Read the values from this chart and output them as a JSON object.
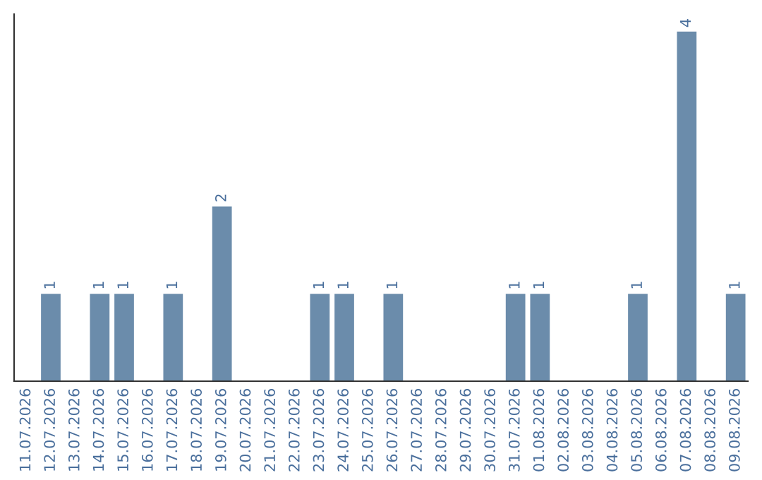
{
  "chart_data": {
    "type": "bar",
    "categories": [
      "11.07.2026",
      "12.07.2026",
      "13.07.2026",
      "14.07.2026",
      "15.07.2026",
      "16.07.2026",
      "17.07.2026",
      "18.07.2026",
      "19.07.2026",
      "20.07.2026",
      "21.07.2026",
      "22.07.2026",
      "23.07.2026",
      "24.07.2026",
      "25.07.2026",
      "26.07.2026",
      "27.07.2026",
      "28.07.2026",
      "29.07.2026",
      "30.07.2026",
      "31.07.2026",
      "01.08.2026",
      "02.08.2026",
      "03.08.2026",
      "04.08.2026",
      "05.08.2026",
      "06.08.2026",
      "07.08.2026",
      "08.08.2026",
      "09.08.2026"
    ],
    "values": [
      0,
      1,
      0,
      1,
      1,
      0,
      1,
      0,
      2,
      0,
      0,
      0,
      1,
      1,
      0,
      1,
      0,
      0,
      0,
      0,
      1,
      1,
      0,
      0,
      0,
      1,
      0,
      4,
      0,
      1
    ],
    "value_labels": [
      null,
      "1",
      null,
      "1",
      "1",
      null,
      "1",
      null,
      "2",
      null,
      null,
      null,
      "1",
      "1",
      null,
      "1",
      null,
      null,
      null,
      null,
      "1",
      "1",
      null,
      null,
      null,
      "1",
      null,
      "4",
      null,
      "1"
    ],
    "color": "#6b8cab",
    "grid": false,
    "legend": false,
    "tick_labels": "x"
  }
}
